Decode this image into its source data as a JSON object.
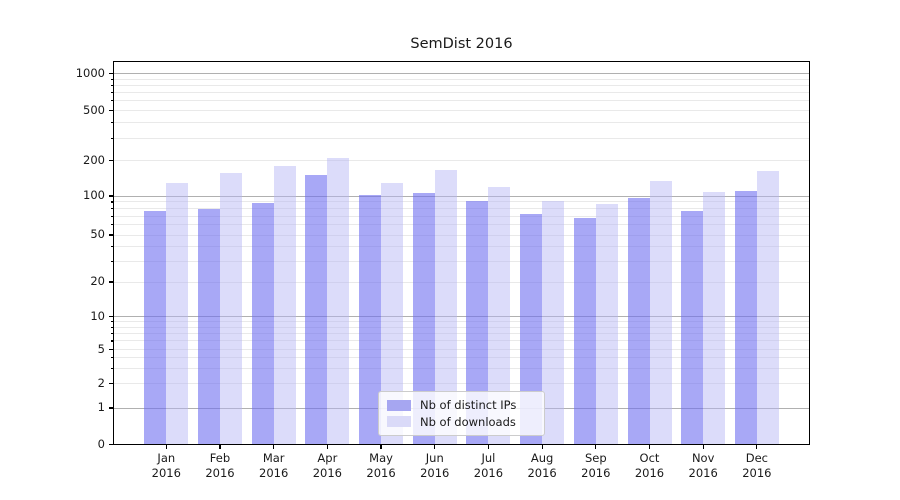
{
  "figure": {
    "background": "#ffffff"
  },
  "chart_data": {
    "type": "bar",
    "title": "SemDist 2016",
    "categories": [
      "Jan 2016",
      "Feb 2016",
      "Mar 2016",
      "Apr 2016",
      "May 2016",
      "Jun 2016",
      "Jul 2016",
      "Aug 2016",
      "Sep 2016",
      "Oct 2016",
      "Nov 2016",
      "Dec 2016"
    ],
    "months": [
      "Jan",
      "Feb",
      "Mar",
      "Apr",
      "May",
      "Jun",
      "Jul",
      "Aug",
      "Sep",
      "Oct",
      "Nov",
      "Dec"
    ],
    "year": "2016",
    "series": [
      {
        "name": "Nb of distinct IPs",
        "color": "rgba(110,110,240,0.6)",
        "legend_color": "#a6a6f1",
        "values": [
          77,
          80,
          89,
          152,
          102,
          106,
          91,
          73,
          68,
          96,
          77,
          110
        ]
      },
      {
        "name": "Nb of downloads",
        "color": "rgba(180,180,245,0.47)",
        "legend_color": "#dadaf8",
        "values": [
          130,
          158,
          180,
          208,
          130,
          167,
          120,
          92,
          86,
          135,
          108,
          163
        ]
      }
    ],
    "y_axis": {
      "scale": "symlog",
      "tick_labels": [
        0,
        1,
        2,
        5,
        10,
        20,
        50,
        100,
        200,
        500,
        1000
      ],
      "major_gridlines": [
        1,
        10,
        100,
        1000
      ],
      "ylim": [
        0,
        1000
      ]
    },
    "xlabel": "",
    "ylabel": "",
    "grid": true,
    "legend_position": "lower center"
  },
  "colors": {
    "major_grid": "#b0b0b0",
    "minor_grid": "#e9e9e9",
    "spine": "#000000",
    "text": "#1a1a1a"
  }
}
